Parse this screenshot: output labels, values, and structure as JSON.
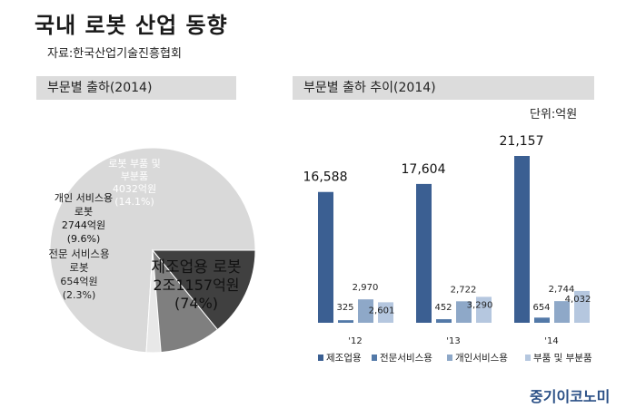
{
  "header": {
    "title": "국내 로봇 산업 동향",
    "source": "자료:한국산업기술진흥협회"
  },
  "panels": {
    "left_title": "부문별 출하(2014)",
    "right_title": "부문별 출하 추이(2014)",
    "unit": "단위:억원"
  },
  "logo": "중기이코노미",
  "colors": {
    "pie_manufacturing": "#d9d9d9",
    "pie_professional": "#e8e8e8",
    "pie_personal": "#7f7f7f",
    "pie_parts": "#404040",
    "bar_manufacturing": "#3b5f92",
    "bar_professional": "#5379a8",
    "bar_personal": "#8ea8c8",
    "bar_parts": "#b5c7df"
  },
  "chart_data": [
    {
      "type": "pie",
      "title": "부문별 출하(2014)",
      "slices": [
        {
          "name": "제조업용 로봇",
          "value": 21157,
          "value_label": "2조1157억원",
          "percent_label": "(74%)"
        },
        {
          "name": "전문 서비스용 로봇",
          "value": 654,
          "value_label": "654억원",
          "percent_label": "(2.3%)"
        },
        {
          "name": "개인 서비스용 로봇",
          "value": 2744,
          "value_label": "2744억원",
          "percent_label": "(9.6%)"
        },
        {
          "name": "로봇 부품 및 부분품",
          "value": 4032,
          "value_label": "4032억원",
          "percent_label": "(14.1%)"
        }
      ]
    },
    {
      "type": "bar",
      "title": "부문별 출하 추이(2014)",
      "unit": "단위:억원",
      "categories": [
        "'12",
        "'13",
        "'14"
      ],
      "series": [
        {
          "name": "제조업용",
          "values": [
            16588,
            17604,
            21157
          ],
          "labels": [
            "16,588",
            "17,604",
            "21,157"
          ]
        },
        {
          "name": "전문서비스용",
          "values": [
            325,
            452,
            654
          ],
          "labels": [
            "325",
            "452",
            "654"
          ]
        },
        {
          "name": "개인서비스용",
          "values": [
            2970,
            2722,
            2744
          ],
          "labels": [
            "2,970",
            "2,722",
            "2,744"
          ]
        },
        {
          "name": "부품 및 부분품",
          "values": [
            2601,
            3290,
            4032
          ],
          "labels": [
            "2,601",
            "3,290",
            "4,032"
          ]
        }
      ]
    }
  ]
}
